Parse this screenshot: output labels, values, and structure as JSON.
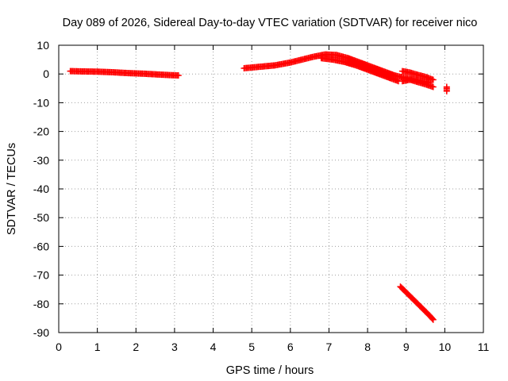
{
  "chart_data": {
    "type": "scatter",
    "title": "Day 089 of 2026, Sidereal Day-to-day VTEC variation (SDTVAR) for receiver nico",
    "xlabel": "GPS time / hours",
    "ylabel": "SDTVAR / TECUs",
    "xlim": [
      0,
      11
    ],
    "ylim": [
      -90,
      10
    ],
    "xticks": [
      0,
      1,
      2,
      3,
      4,
      5,
      6,
      7,
      8,
      9,
      10,
      11
    ],
    "yticks": [
      10,
      0,
      -10,
      -20,
      -30,
      -40,
      -50,
      -60,
      -70,
      -80,
      -90
    ],
    "grid": true,
    "marker": "+",
    "color": "#ff0000",
    "series": [
      {
        "name": "segment-1",
        "points": [
          [
            0.3,
            1.0
          ],
          [
            0.6,
            0.9
          ],
          [
            1.0,
            0.8
          ],
          [
            1.4,
            0.6
          ],
          [
            1.8,
            0.3
          ],
          [
            2.2,
            0.1
          ],
          [
            2.6,
            -0.2
          ],
          [
            2.9,
            -0.4
          ],
          [
            3.1,
            -0.5
          ]
        ]
      },
      {
        "name": "segment-2",
        "points": [
          [
            4.8,
            2.0
          ],
          [
            5.2,
            2.5
          ],
          [
            5.6,
            3.0
          ],
          [
            6.0,
            4.0
          ],
          [
            6.3,
            5.0
          ],
          [
            6.6,
            6.0
          ],
          [
            6.9,
            6.8
          ],
          [
            7.2,
            6.6
          ],
          [
            7.5,
            5.5
          ],
          [
            7.8,
            4.0
          ],
          [
            8.1,
            2.5
          ],
          [
            8.4,
            1.0
          ],
          [
            8.7,
            -0.5
          ],
          [
            9.0,
            -1.5
          ],
          [
            9.3,
            -2.2
          ],
          [
            9.6,
            -3.0
          ]
        ]
      },
      {
        "name": "segment-3",
        "points": [
          [
            6.8,
            5.5
          ],
          [
            7.1,
            5.0
          ],
          [
            7.4,
            4.2
          ],
          [
            7.7,
            3.0
          ],
          [
            8.0,
            1.5
          ],
          [
            8.3,
            0.0
          ],
          [
            8.6,
            -1.5
          ],
          [
            8.8,
            -2.5
          ]
        ]
      },
      {
        "name": "segment-4",
        "points": [
          [
            8.9,
            1.0
          ],
          [
            9.1,
            0.5
          ],
          [
            9.3,
            -0.3
          ],
          [
            9.5,
            -1.0
          ],
          [
            9.6,
            -1.5
          ],
          [
            9.7,
            -2.0
          ]
        ]
      },
      {
        "name": "segment-5",
        "points": [
          [
            8.9,
            -2.5
          ],
          [
            9.1,
            -2.0
          ],
          [
            9.3,
            -2.8
          ],
          [
            9.5,
            -3.6
          ],
          [
            9.7,
            -4.5
          ]
        ]
      },
      {
        "name": "segment-6",
        "points": [
          [
            10.05,
            -4.5
          ],
          [
            10.05,
            -6.0
          ]
        ]
      },
      {
        "name": "segment-7",
        "points": [
          [
            8.85,
            -74.0
          ],
          [
            9.0,
            -76.0
          ],
          [
            9.15,
            -78.0
          ],
          [
            9.3,
            -80.0
          ],
          [
            9.45,
            -82.0
          ],
          [
            9.6,
            -84.0
          ],
          [
            9.7,
            -85.5
          ]
        ]
      }
    ]
  }
}
